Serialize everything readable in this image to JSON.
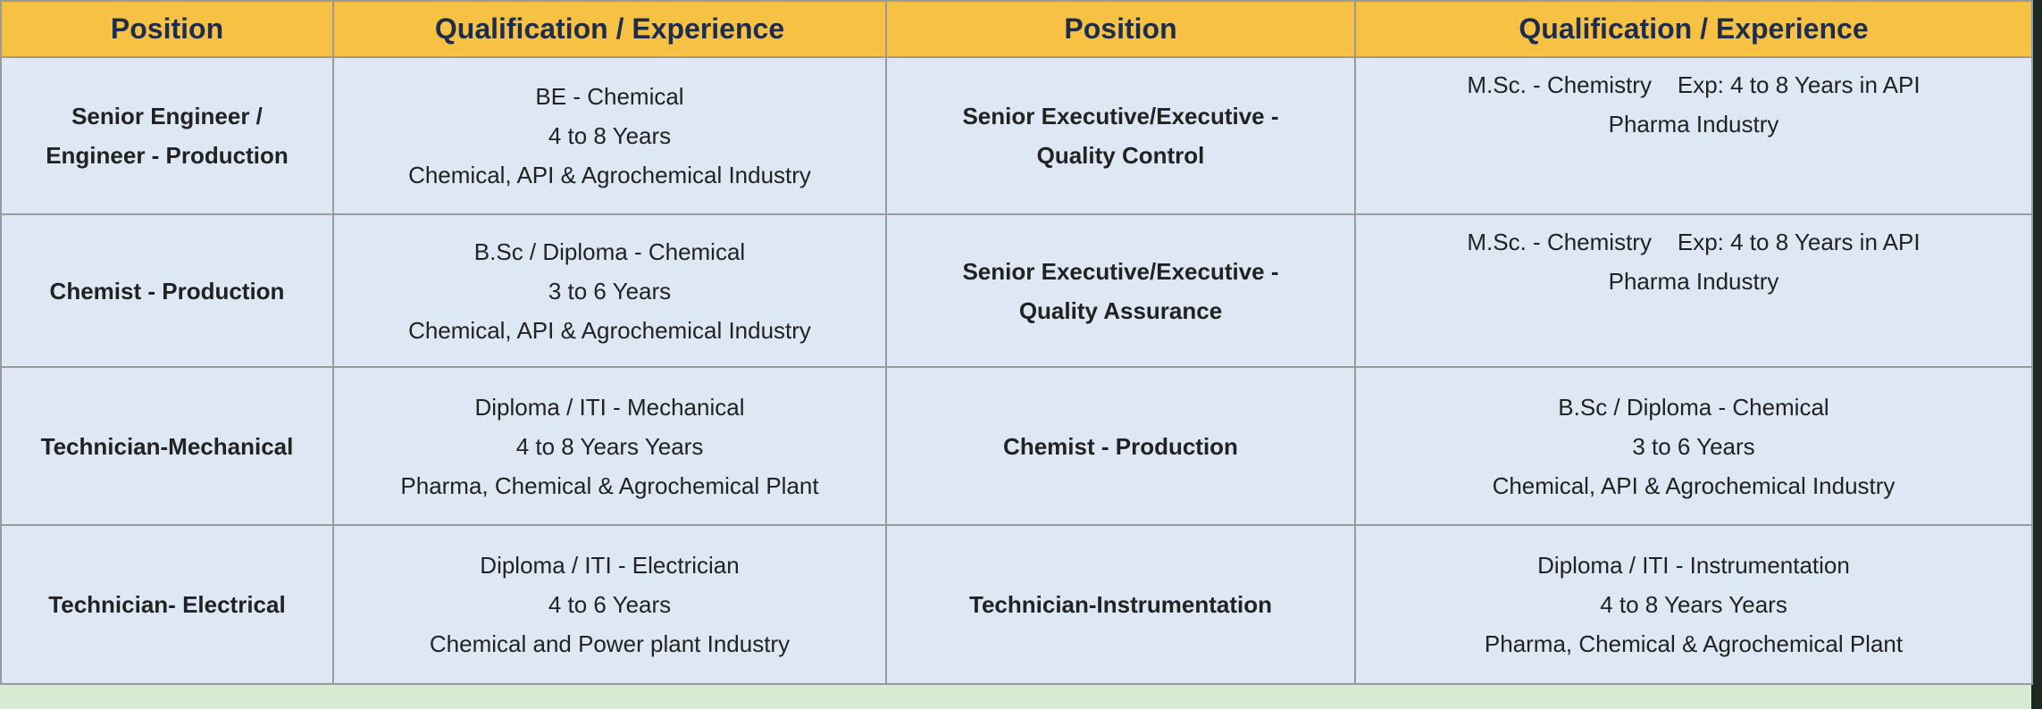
{
  "table": {
    "header": [
      "Position",
      "Qualification / Experience",
      "Position",
      "Qualification / Experience"
    ],
    "rows": [
      [
        [
          "Senior Engineer /",
          "Engineer - Production"
        ],
        [
          "BE - Chemical",
          "4 to 8 Years",
          "Chemical, API & Agrochemical Industry"
        ],
        [
          "Senior Executive/Executive -",
          "Quality Control"
        ],
        [
          "M.Sc. - Chemistry    Exp: 4 to 8 Years in API",
          "Pharma Industry"
        ]
      ],
      [
        [
          "Chemist - Production"
        ],
        [
          "B.Sc / Diploma - Chemical",
          "3 to 6 Years",
          "Chemical, API & Agrochemical Industry"
        ],
        [
          "Senior Executive/Executive -",
          "Quality Assurance"
        ],
        [
          "M.Sc. - Chemistry    Exp: 4 to 8 Years in API",
          "Pharma Industry"
        ]
      ],
      [
        [
          "Technician-Mechanical"
        ],
        [
          "Diploma / ITI - Mechanical",
          "4 to 8 Years Years",
          "Pharma, Chemical & Agrochemical Plant"
        ],
        [
          "Chemist - Production"
        ],
        [
          "B.Sc / Diploma - Chemical",
          "3 to 6 Years",
          "Chemical, API & Agrochemical Industry"
        ]
      ],
      [
        [
          "Technician- Electrical"
        ],
        [
          "Diploma / ITI - Electrician",
          "4 to 6 Years",
          "Chemical and Power plant Industry"
        ],
        [
          "Technician-Instrumentation"
        ],
        [
          "Diploma / ITI - Instrumentation",
          "4 to 8 Years Years",
          "Pharma, Chemical & Agrochemical Plant"
        ]
      ]
    ]
  }
}
